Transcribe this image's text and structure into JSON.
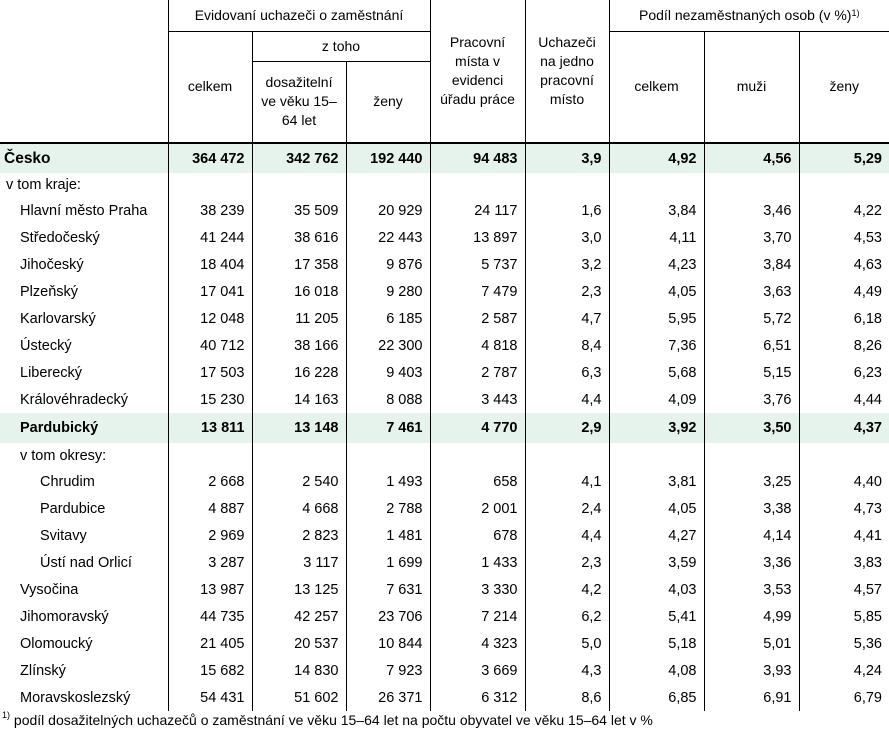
{
  "header": {
    "group_uchazeci": "Evidovaní uchazeči o zaměstnání",
    "z_toho": "z toho",
    "celkem": "celkem",
    "dosazitelni": "dosažitelní ve věku 15–64 let",
    "zeny": "ženy",
    "pracovni_mista": "Pracovní místa v evidenci úřadu práce",
    "uchazeci_na_misto": "Uchazeči na jedno pracovní místo",
    "group_podil": "Podíl nezaměstnaných osob (v %)",
    "podil_sup": "1)",
    "podil_celkem": "celkem",
    "muzi": "muži",
    "podil_zeny": "ženy"
  },
  "rows": [
    {
      "name": "Česko",
      "values": [
        "364 472",
        "342 762",
        "192 440",
        "94 483",
        "3,9",
        "4,92",
        "4,56",
        "5,29"
      ],
      "style": "total"
    },
    {
      "name": "v tom kraje:",
      "values": [],
      "style": "label"
    },
    {
      "name": "Hlavní město Praha",
      "values": [
        "38 239",
        "35 509",
        "20 929",
        "24 117",
        "1,6",
        "3,84",
        "3,46",
        "4,22"
      ],
      "style": "l1"
    },
    {
      "name": "Středočeský",
      "values": [
        "41 244",
        "38 616",
        "22 443",
        "13 897",
        "3,0",
        "4,11",
        "3,70",
        "4,53"
      ],
      "style": "l1"
    },
    {
      "name": "Jihočeský",
      "values": [
        "18 404",
        "17 358",
        "9 876",
        "5 737",
        "3,2",
        "4,23",
        "3,84",
        "4,63"
      ],
      "style": "l1"
    },
    {
      "name": "Plzeňský",
      "values": [
        "17 041",
        "16 018",
        "9 280",
        "7 479",
        "2,3",
        "4,05",
        "3,63",
        "4,49"
      ],
      "style": "l1"
    },
    {
      "name": "Karlovarský",
      "values": [
        "12 048",
        "11 205",
        "6 185",
        "2 587",
        "4,7",
        "5,95",
        "5,72",
        "6,18"
      ],
      "style": "l1"
    },
    {
      "name": "Ústecký",
      "values": [
        "40 712",
        "38 166",
        "22 300",
        "4 818",
        "8,4",
        "7,36",
        "6,51",
        "8,26"
      ],
      "style": "l1"
    },
    {
      "name": "Liberecký",
      "values": [
        "17 503",
        "16 228",
        "9 403",
        "2 787",
        "6,3",
        "5,68",
        "5,15",
        "6,23"
      ],
      "style": "l1"
    },
    {
      "name": "Královéhradecký",
      "values": [
        "15 230",
        "14 163",
        "8 088",
        "3 443",
        "4,4",
        "4,09",
        "3,76",
        "4,44"
      ],
      "style": "l1"
    },
    {
      "name": "Pardubický",
      "values": [
        "13 811",
        "13 148",
        "7 461",
        "4 770",
        "2,9",
        "3,92",
        "3,50",
        "4,37"
      ],
      "style": "highlight"
    },
    {
      "name": "v tom okresy:",
      "values": [],
      "style": "label2"
    },
    {
      "name": "Chrudim",
      "values": [
        "2 668",
        "2 540",
        "1 493",
        "658",
        "4,1",
        "3,81",
        "3,25",
        "4,40"
      ],
      "style": "l2"
    },
    {
      "name": "Pardubice",
      "values": [
        "4 887",
        "4 668",
        "2 788",
        "2 001",
        "2,4",
        "4,05",
        "3,38",
        "4,73"
      ],
      "style": "l2"
    },
    {
      "name": "Svitavy",
      "values": [
        "2 969",
        "2 823",
        "1 481",
        "678",
        "4,4",
        "4,27",
        "4,14",
        "4,41"
      ],
      "style": "l2"
    },
    {
      "name": "Ústí nad Orlicí",
      "values": [
        "3 287",
        "3 117",
        "1 699",
        "1 433",
        "2,3",
        "3,59",
        "3,36",
        "3,83"
      ],
      "style": "l2"
    },
    {
      "name": "Vysočina",
      "values": [
        "13 987",
        "13 125",
        "7 631",
        "3 330",
        "4,2",
        "4,03",
        "3,53",
        "4,57"
      ],
      "style": "l1"
    },
    {
      "name": "Jihomoravský",
      "values": [
        "44 735",
        "42 257",
        "23 706",
        "7 214",
        "6,2",
        "5,41",
        "4,99",
        "5,85"
      ],
      "style": "l1"
    },
    {
      "name": "Olomoucký",
      "values": [
        "21 405",
        "20 537",
        "10 844",
        "4 323",
        "5,0",
        "5,18",
        "5,01",
        "5,36"
      ],
      "style": "l1"
    },
    {
      "name": "Zlínský",
      "values": [
        "15 682",
        "14 830",
        "7 923",
        "3 669",
        "4,3",
        "4,08",
        "3,93",
        "4,24"
      ],
      "style": "l1"
    },
    {
      "name": "Moravskoslezský",
      "values": [
        "54 431",
        "51 602",
        "26 371",
        "6 312",
        "8,6",
        "6,85",
        "6,91",
        "6,79"
      ],
      "style": "l1"
    }
  ],
  "footnote": {
    "sup": "1)",
    "text": " podíl dosažitelných uchazečů o zaměstnání ve věku 15–64 let na počtu obyvatel ve věku 15–64 let v %"
  }
}
